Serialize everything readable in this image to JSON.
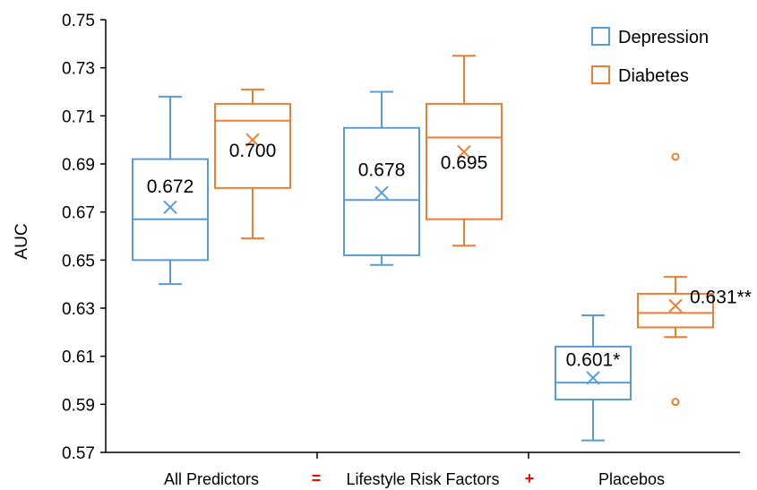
{
  "chart_data": {
    "type": "box",
    "ylabel": "AUC",
    "ylim": [
      0.57,
      0.75
    ],
    "yticks": [
      "0.57",
      "0.59",
      "0.61",
      "0.63",
      "0.65",
      "0.67",
      "0.69",
      "0.71",
      "0.73",
      "0.75"
    ],
    "grid": false,
    "legend": "top-right",
    "categories": [
      {
        "label": "All Predictors",
        "symbol": "",
        "symbol_color": ""
      },
      {
        "label": "Lifestyle Risk Factors",
        "symbol": "=",
        "symbol_color": "#ff0000"
      },
      {
        "label": "Placebos",
        "symbol": "+",
        "symbol_color": "#ff0000"
      }
    ],
    "series": [
      {
        "name": "Depression",
        "color": "#5b9bd5",
        "boxes": [
          {
            "min": 0.64,
            "q1": 0.65,
            "median": 0.667,
            "q3": 0.692,
            "max": 0.718,
            "mean": 0.672,
            "mean_label": "0.672",
            "outliers": []
          },
          {
            "min": 0.648,
            "q1": 0.652,
            "median": 0.675,
            "q3": 0.705,
            "max": 0.72,
            "mean": 0.678,
            "mean_label": "0.678",
            "outliers": []
          },
          {
            "min": 0.575,
            "q1": 0.592,
            "median": 0.599,
            "q3": 0.614,
            "max": 0.627,
            "mean": 0.601,
            "mean_label": "0.601*",
            "outliers": []
          }
        ]
      },
      {
        "name": "Diabetes",
        "color": "#ed7d31",
        "boxes": [
          {
            "min": 0.659,
            "q1": 0.68,
            "median": 0.708,
            "q3": 0.715,
            "max": 0.721,
            "mean": 0.7,
            "mean_label": "0.700",
            "outliers": []
          },
          {
            "min": 0.656,
            "q1": 0.667,
            "median": 0.701,
            "q3": 0.715,
            "max": 0.735,
            "mean": 0.695,
            "mean_label": "0.695",
            "outliers": []
          },
          {
            "min": 0.618,
            "q1": 0.622,
            "median": 0.628,
            "q3": 0.636,
            "max": 0.643,
            "mean": 0.631,
            "mean_label": "0.631**",
            "outliers": [
              0.693,
              0.591
            ]
          }
        ]
      }
    ]
  }
}
